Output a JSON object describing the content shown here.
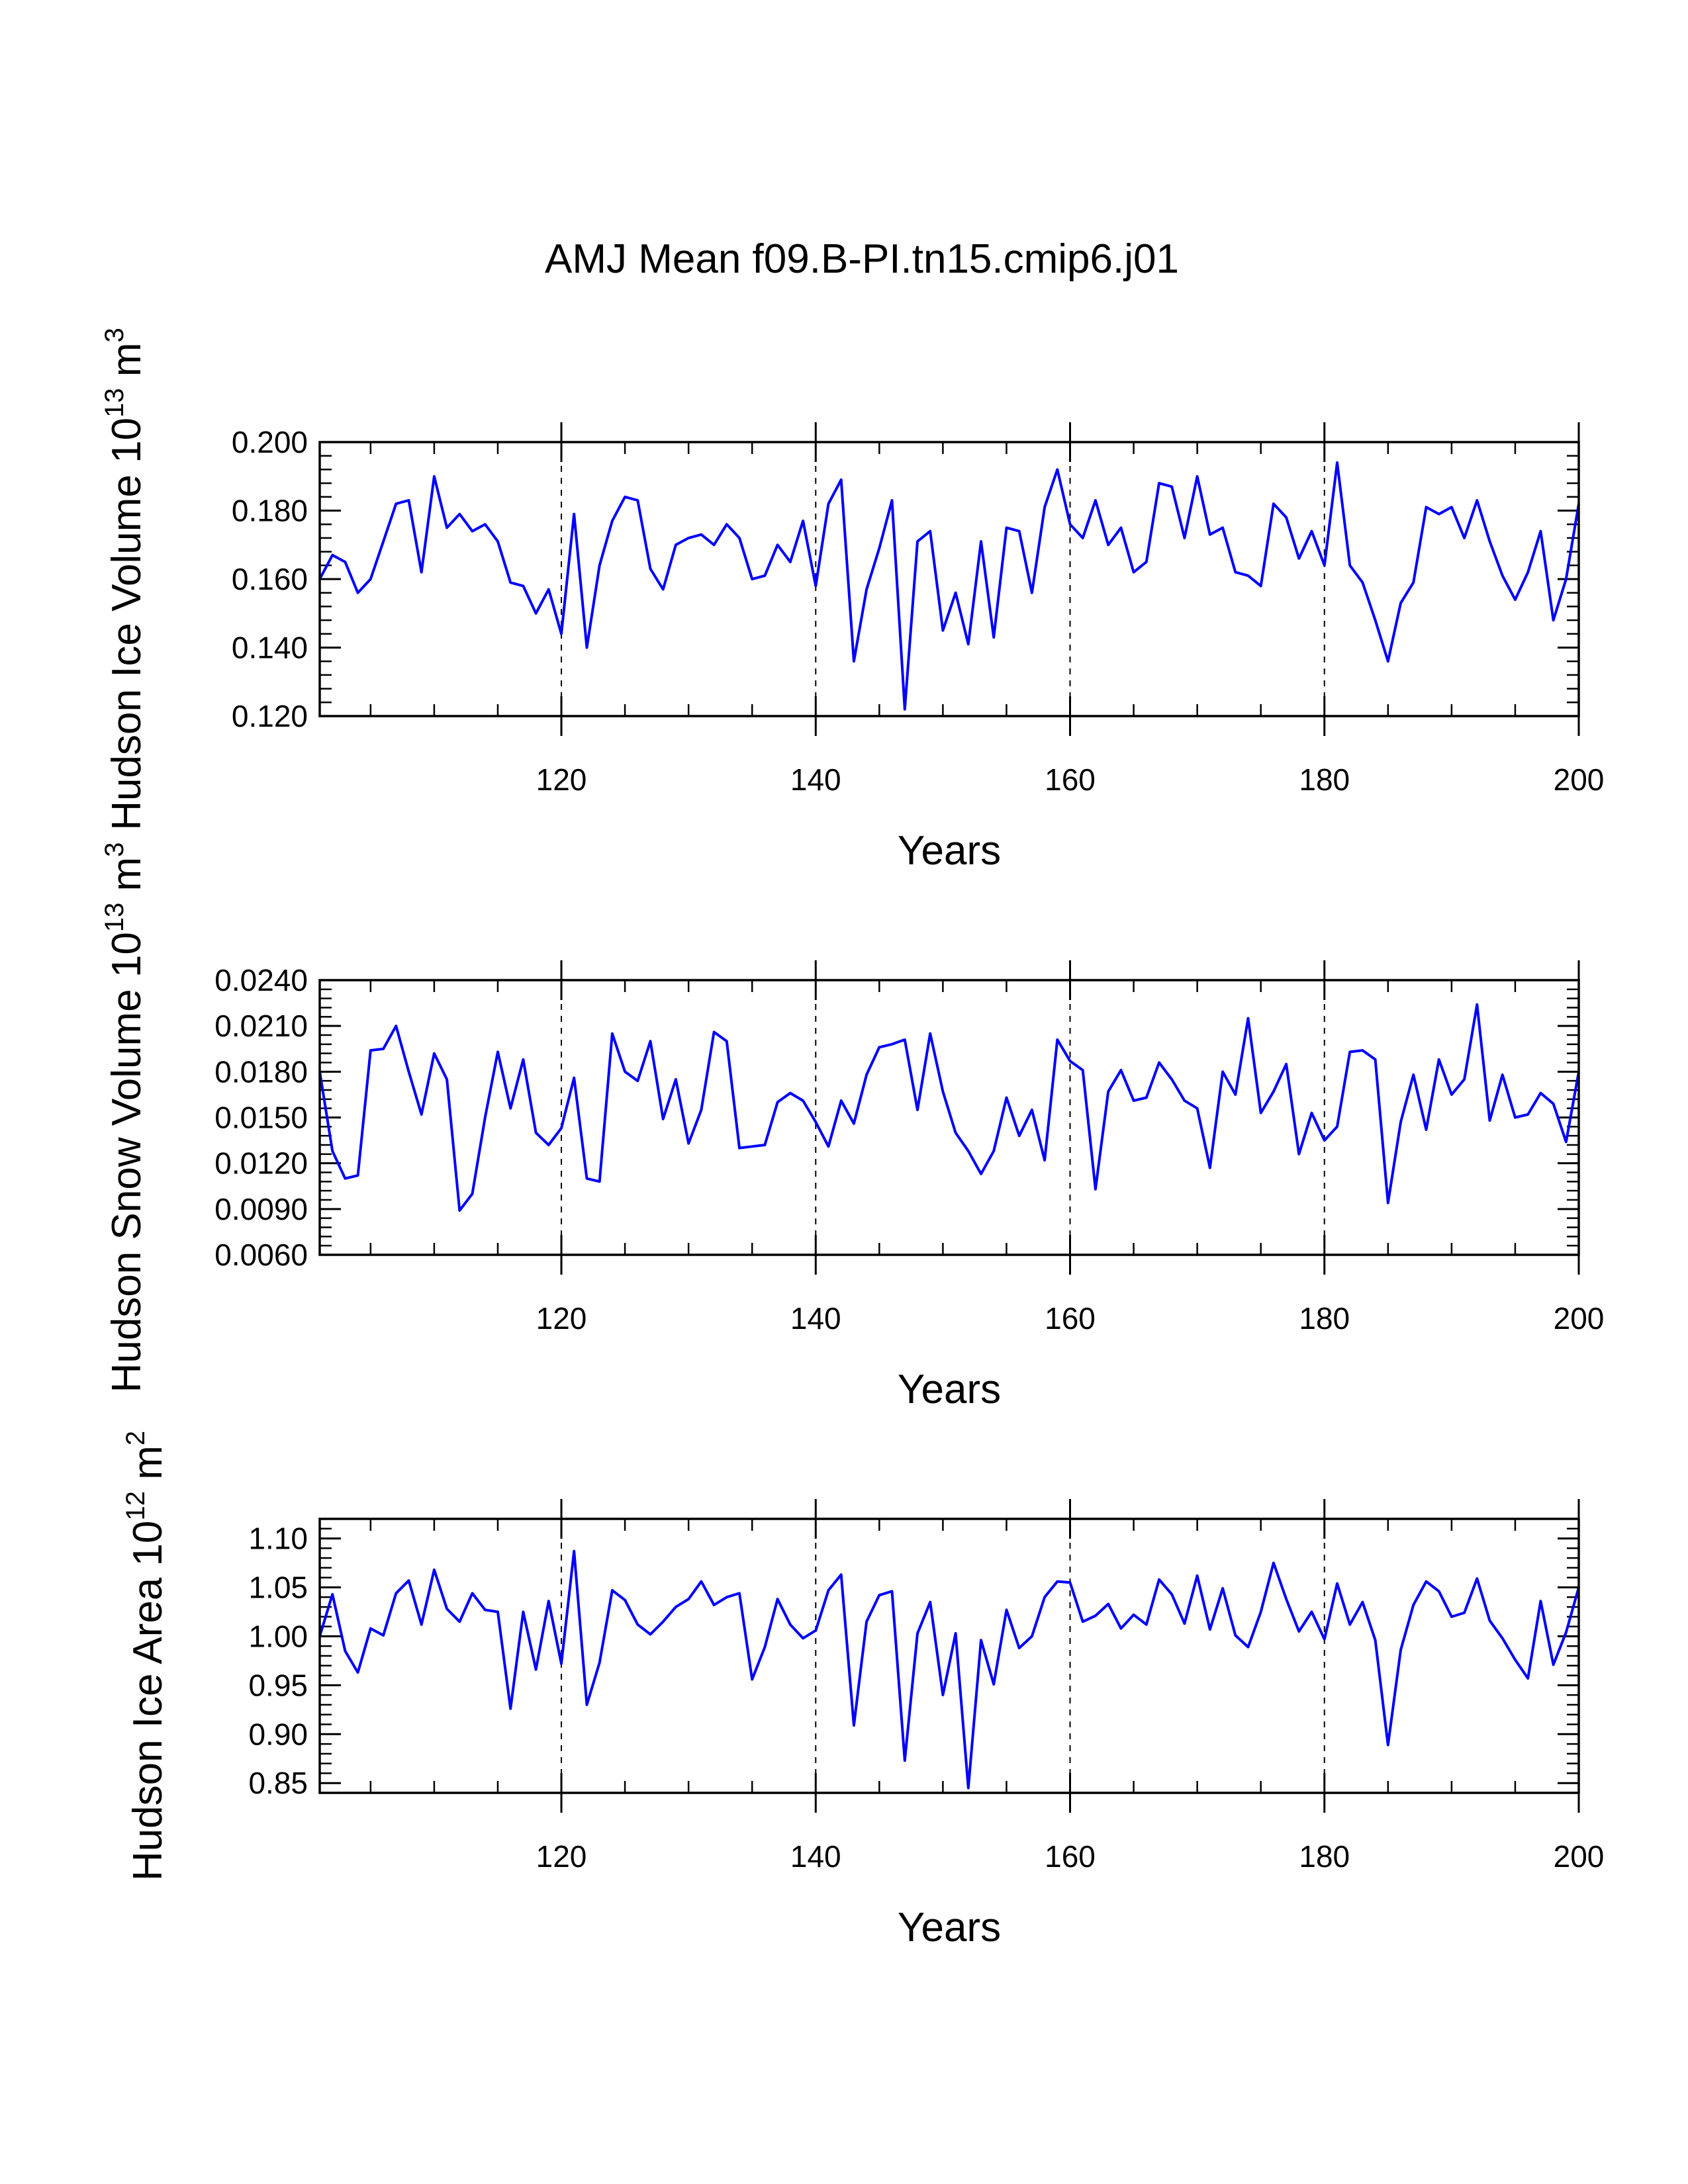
{
  "title": "AMJ Mean f09.B-PI.tn15.cmip6.j01",
  "line_color": "#0000ff",
  "chart_data": [
    {
      "type": "line",
      "title": "AMJ Mean f09.B-PI.tn15.cmip6.j01",
      "ylabel": "Hudson Ice Volume 10",
      "ylabel_exp": "13",
      "ylabel_unit": " m",
      "ylabel_unit_exp": "3",
      "xlabel": "Years",
      "xlim": [
        101,
        200
      ],
      "ylim": [
        0.12,
        0.2
      ],
      "xticks": [
        120,
        140,
        160,
        180,
        200
      ],
      "xtick_labels": [
        "120",
        "140",
        "160",
        "180",
        "200"
      ],
      "yticks": [
        0.12,
        0.14,
        0.16,
        0.18,
        0.2
      ],
      "ytick_labels": [
        "0.120",
        "0.140",
        "0.160",
        "0.180",
        "0.200"
      ],
      "grid": "dashed vertical at 120, 140, 160, 180",
      "x": [
        101,
        102,
        103,
        104,
        105,
        106,
        107,
        108,
        109,
        110,
        111,
        112,
        113,
        114,
        115,
        116,
        117,
        118,
        119,
        120,
        121,
        122,
        123,
        124,
        125,
        126,
        127,
        128,
        129,
        130,
        131,
        132,
        133,
        134,
        135,
        136,
        137,
        138,
        139,
        140,
        141,
        142,
        143,
        144,
        145,
        146,
        147,
        148,
        149,
        150,
        151,
        152,
        153,
        154,
        155,
        156,
        157,
        158,
        159,
        160,
        161,
        162,
        163,
        164,
        165,
        166,
        167,
        168,
        169,
        170,
        171,
        172,
        173,
        174,
        175,
        176,
        177,
        178,
        179,
        180,
        181,
        182,
        183,
        184,
        185,
        186,
        187,
        188,
        189,
        190,
        191,
        192,
        193,
        194,
        195,
        196,
        197,
        198,
        199,
        200
      ],
      "series": [
        {
          "name": "Hudson Ice Volume",
          "values": [
            0.16,
            0.167,
            0.165,
            0.156,
            0.16,
            0.171,
            0.182,
            0.183,
            0.162,
            0.19,
            0.175,
            0.179,
            0.174,
            0.176,
            0.171,
            0.159,
            0.158,
            0.15,
            0.157,
            0.144,
            0.179,
            0.14,
            0.164,
            0.177,
            0.184,
            0.183,
            0.163,
            0.157,
            0.17,
            0.172,
            0.173,
            0.17,
            0.176,
            0.172,
            0.16,
            0.161,
            0.17,
            0.165,
            0.177,
            0.158,
            0.182,
            0.189,
            0.136,
            0.157,
            0.169,
            0.183,
            0.122,
            0.171,
            0.174,
            0.145,
            0.156,
            0.141,
            0.171,
            0.143,
            0.175,
            0.174,
            0.156,
            0.181,
            0.192,
            0.176,
            0.172,
            0.183,
            0.17,
            0.175,
            0.162,
            0.165,
            0.188,
            0.187,
            0.172,
            0.19,
            0.173,
            0.175,
            0.162,
            0.161,
            0.158,
            0.182,
            0.178,
            0.166,
            0.174,
            0.164,
            0.194,
            0.164,
            0.159,
            0.148,
            0.136,
            0.153,
            0.159,
            0.181,
            0.179,
            0.181,
            0.172,
            0.183,
            0.171,
            0.161,
            0.154,
            0.162,
            0.174,
            0.148,
            0.16,
            0.182
          ]
        }
      ]
    },
    {
      "type": "line",
      "ylabel": "Hudson Snow Volume 10",
      "ylabel_exp": "13",
      "ylabel_unit": " m",
      "ylabel_unit_exp": "3",
      "xlabel": "Years",
      "xlim": [
        101,
        200
      ],
      "ylim": [
        0.006,
        0.024
      ],
      "xticks": [
        120,
        140,
        160,
        180,
        200
      ],
      "xtick_labels": [
        "120",
        "140",
        "160",
        "180",
        "200"
      ],
      "yticks": [
        0.006,
        0.009,
        0.012,
        0.015,
        0.018,
        0.021,
        0.024
      ],
      "ytick_labels": [
        "0.0060",
        "0.0090",
        "0.0120",
        "0.0150",
        "0.0180",
        "0.0210",
        "0.0240"
      ],
      "grid": "dashed vertical at 120, 140, 160, 180",
      "x": [
        101,
        102,
        103,
        104,
        105,
        106,
        107,
        108,
        109,
        110,
        111,
        112,
        113,
        114,
        115,
        116,
        117,
        118,
        119,
        120,
        121,
        122,
        123,
        124,
        125,
        126,
        127,
        128,
        129,
        130,
        131,
        132,
        133,
        134,
        135,
        136,
        137,
        138,
        139,
        140,
        141,
        142,
        143,
        144,
        145,
        146,
        147,
        148,
        149,
        150,
        151,
        152,
        153,
        154,
        155,
        156,
        157,
        158,
        159,
        160,
        161,
        162,
        163,
        164,
        165,
        166,
        167,
        168,
        169,
        170,
        171,
        172,
        173,
        174,
        175,
        176,
        177,
        178,
        179,
        180,
        181,
        182,
        183,
        184,
        185,
        186,
        187,
        188,
        189,
        190,
        191,
        192,
        193,
        194,
        195,
        196,
        197,
        198,
        199,
        200
      ],
      "series": [
        {
          "name": "Hudson Snow Volume",
          "values": [
            0.018,
            0.0128,
            0.011,
            0.0112,
            0.0194,
            0.0195,
            0.021,
            0.018,
            0.0152,
            0.0192,
            0.0175,
            0.0089,
            0.01,
            0.015,
            0.0193,
            0.0156,
            0.0188,
            0.014,
            0.0132,
            0.0143,
            0.0176,
            0.011,
            0.0108,
            0.0205,
            0.018,
            0.0174,
            0.02,
            0.0149,
            0.0175,
            0.0133,
            0.0155,
            0.0206,
            0.02,
            0.013,
            0.0131,
            0.0132,
            0.016,
            0.0166,
            0.0161,
            0.0147,
            0.0131,
            0.0161,
            0.0146,
            0.0178,
            0.0196,
            0.0198,
            0.0201,
            0.0155,
            0.0205,
            0.0167,
            0.014,
            0.0128,
            0.0113,
            0.0128,
            0.0163,
            0.0138,
            0.0155,
            0.0122,
            0.0201,
            0.0187,
            0.0181,
            0.0103,
            0.0167,
            0.0181,
            0.0161,
            0.0163,
            0.0186,
            0.0175,
            0.0161,
            0.0156,
            0.0117,
            0.018,
            0.0165,
            0.0215,
            0.0153,
            0.0167,
            0.0185,
            0.0126,
            0.0153,
            0.0135,
            0.0144,
            0.0193,
            0.0194,
            0.0188,
            0.0094,
            0.0147,
            0.0178,
            0.0142,
            0.0188,
            0.0165,
            0.0175,
            0.0224,
            0.0148,
            0.0178,
            0.015,
            0.0152,
            0.0166,
            0.0159,
            0.0134,
            0.018
          ]
        }
      ]
    },
    {
      "type": "line",
      "ylabel": "Hudson Ice Area 10",
      "ylabel_exp": "12",
      "ylabel_unit": " m",
      "ylabel_unit_exp": "2",
      "xlabel": "Years",
      "xlim": [
        101,
        200
      ],
      "ylim": [
        0.84,
        1.12
      ],
      "xticks": [
        120,
        140,
        160,
        180,
        200
      ],
      "xtick_labels": [
        "120",
        "140",
        "160",
        "180",
        "200"
      ],
      "yticks": [
        0.85,
        0.9,
        0.95,
        1.0,
        1.05,
        1.1
      ],
      "ytick_labels": [
        "0.85",
        "0.90",
        "0.95",
        "1.00",
        "1.05",
        "1.10"
      ],
      "grid": "dashed vertical at 120, 140, 160, 180",
      "x": [
        101,
        102,
        103,
        104,
        105,
        106,
        107,
        108,
        109,
        110,
        111,
        112,
        113,
        114,
        115,
        116,
        117,
        118,
        119,
        120,
        121,
        122,
        123,
        124,
        125,
        126,
        127,
        128,
        129,
        130,
        131,
        132,
        133,
        134,
        135,
        136,
        137,
        138,
        139,
        140,
        141,
        142,
        143,
        144,
        145,
        146,
        147,
        148,
        149,
        150,
        151,
        152,
        153,
        154,
        155,
        156,
        157,
        158,
        159,
        160,
        161,
        162,
        163,
        164,
        165,
        166,
        167,
        168,
        169,
        170,
        171,
        172,
        173,
        174,
        175,
        176,
        177,
        178,
        179,
        180,
        181,
        182,
        183,
        184,
        185,
        186,
        187,
        188,
        189,
        190,
        191,
        192,
        193,
        194,
        195,
        196,
        197,
        198,
        199,
        200
      ],
      "series": [
        {
          "name": "Hudson Ice Area",
          "values": [
            1.0,
            1.043,
            0.985,
            0.963,
            1.008,
            1.001,
            1.044,
            1.057,
            1.012,
            1.068,
            1.028,
            1.015,
            1.044,
            1.027,
            1.025,
            0.926,
            1.025,
            0.966,
            1.036,
            0.972,
            1.087,
            0.93,
            0.973,
            1.047,
            1.037,
            1.012,
            1.002,
            1.015,
            1.03,
            1.038,
            1.056,
            1.032,
            1.04,
            1.044,
            0.956,
            0.989,
            1.038,
            1.012,
            0.998,
            1.006,
            1.047,
            1.063,
            0.909,
            1.015,
            1.042,
            1.046,
            0.873,
            1.003,
            1.035,
            0.94,
            1.003,
            0.845,
            0.996,
            0.951,
            1.027,
            0.988,
            1.0,
            1.04,
            1.056,
            1.055,
            1.015,
            1.021,
            1.033,
            1.008,
            1.022,
            1.012,
            1.058,
            1.043,
            1.013,
            1.062,
            1.007,
            1.049,
            1.001,
            0.989,
            1.025,
            1.075,
            1.038,
            1.005,
            1.025,
            0.997,
            1.054,
            1.012,
            1.035,
            0.996,
            0.889,
            0.986,
            1.032,
            1.056,
            1.046,
            1.02,
            1.024,
            1.059,
            1.016,
            0.998,
            0.976,
            0.957,
            1.036,
            0.971,
            1.004,
            1.05
          ]
        }
      ]
    }
  ]
}
